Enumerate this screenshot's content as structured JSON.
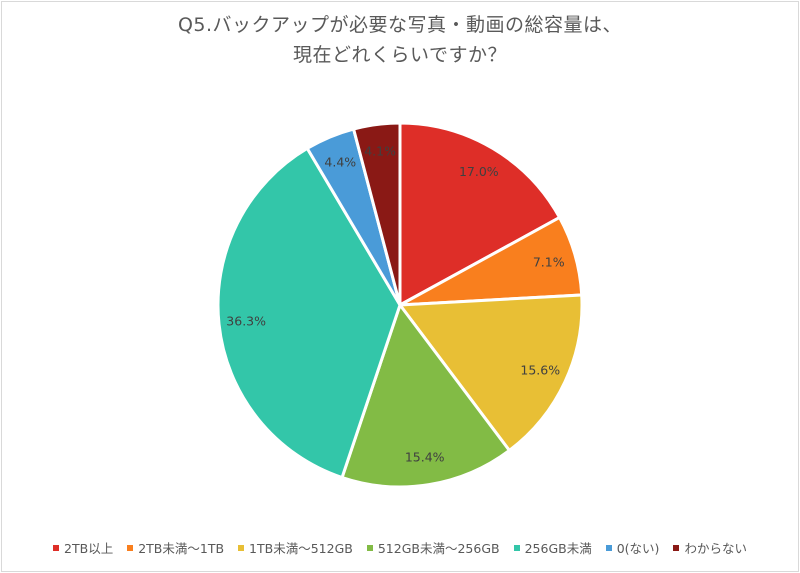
{
  "title": {
    "line1": "Q5.バックアップが必要な写真・動画の総容量は、",
    "line2": "現在どれくらいですか？"
  },
  "chart_data": {
    "type": "pie",
    "title": "Q5.バックアップが必要な写真・動画の総容量は、現在どれくらいですか？",
    "start_angle_deg": -90,
    "direction": "clockwise",
    "legend_position": "bottom",
    "categories": [
      "2TB以上",
      "2TB未満～1TB",
      "1TB未満～512GB",
      "512GB未満～256GB",
      "256GB未満",
      "0(ない)",
      "わからない"
    ],
    "values": [
      17.0,
      7.1,
      15.6,
      15.4,
      36.3,
      4.4,
      4.1
    ],
    "labels": [
      "17.0%",
      "7.1%",
      "15.6%",
      "15.4%",
      "36.3%",
      "4.4%",
      "4.1%"
    ],
    "colors": [
      "#DE2E28",
      "#F97F1E",
      "#E8BF35",
      "#82BB45",
      "#33C6A9",
      "#4A9BD8",
      "#8A1915"
    ]
  },
  "legend": {
    "items": [
      {
        "label": "2TB以上",
        "color": "#DE2E28"
      },
      {
        "label": "2TB未満～1TB",
        "color": "#F97F1E"
      },
      {
        "label": "1TB未満～512GB",
        "color": "#E8BF35"
      },
      {
        "label": "512GB未満～256GB",
        "color": "#82BB45"
      },
      {
        "label": "256GB未満",
        "color": "#33C6A9"
      },
      {
        "label": "0(ない)",
        "color": "#4A9BD8"
      },
      {
        "label": "わからない",
        "color": "#8A1915"
      }
    ]
  }
}
